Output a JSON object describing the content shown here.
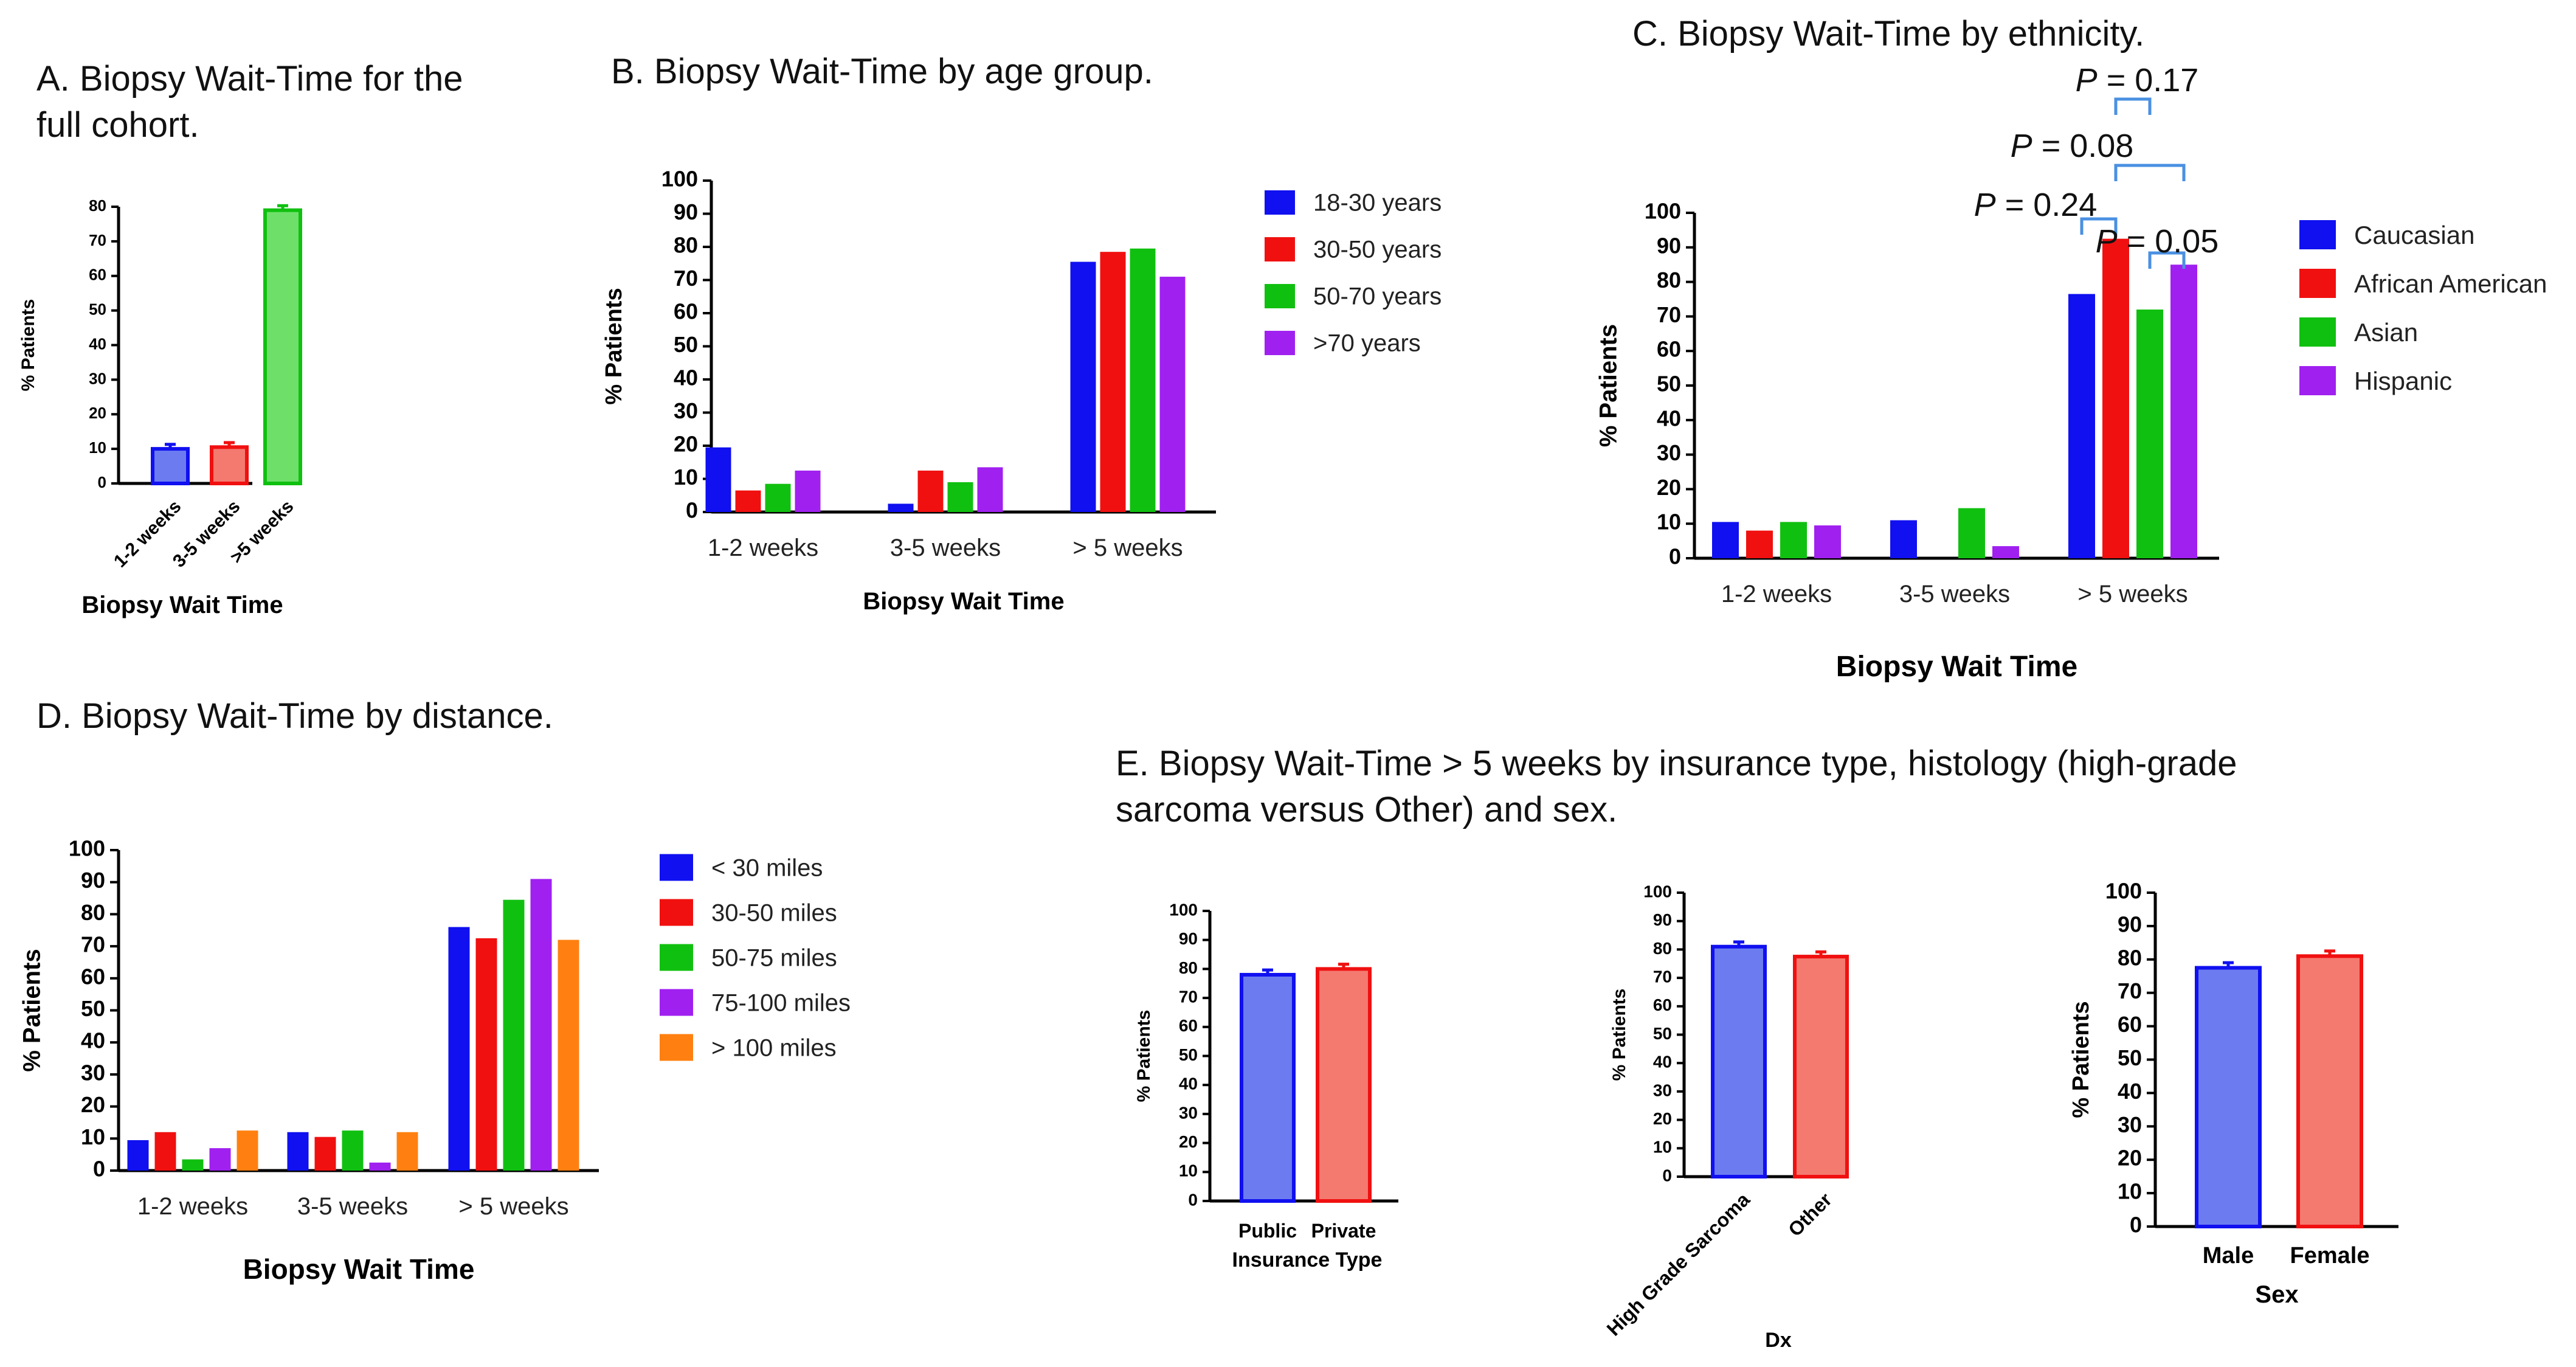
{
  "colors": {
    "blue": "#1010f0",
    "red": "#f01010",
    "green": "#10c010",
    "purple": "#a020f0",
    "orange": "#ff8010",
    "light_blue": "#6c7cf0",
    "light_red": "#f47a70",
    "light_green": "#6ee06a",
    "bracket": "#4a90e2",
    "axis": "#000000"
  },
  "titles": {
    "a_line1": "A. Biopsy Wait-Time for the",
    "a_line2": "full cohort.",
    "b": "B. Biopsy Wait-Time by age group.",
    "c": "C. Biopsy Wait-Time by ethnicity.",
    "d": "D. Biopsy Wait-Time by distance.",
    "e_line1": "E. Biopsy Wait-Time > 5 weeks by insurance type, histology (high-grade",
    "e_line2": "sarcoma versus Other) and sex."
  },
  "chart_data": [
    {
      "id": "A",
      "type": "bar",
      "title": "A. Biopsy Wait-Time for the full cohort.",
      "categories": [
        "1-2 weeks",
        "3-5 weeks",
        ">5 weeks"
      ],
      "values": [
        10,
        10.5,
        79
      ],
      "errors": [
        0.6,
        0.6,
        0.6
      ],
      "bar_colors": [
        "light_blue",
        "light_red",
        "light_green"
      ],
      "edge_colors": [
        "blue",
        "red",
        "green"
      ],
      "xlabel": "Biopsy Wait Time",
      "ylabel": "% Patients",
      "ylim": [
        0,
        80
      ],
      "yticks": [
        0,
        10,
        20,
        30,
        40,
        50,
        60,
        70,
        80
      ]
    },
    {
      "id": "B",
      "type": "bar",
      "title": "B. Biopsy Wait-Time by age group.",
      "categories": [
        "1-2 weeks",
        "3-5 weeks",
        "> 5 weeks"
      ],
      "series": [
        {
          "name": "18-30 years",
          "color": "blue",
          "values": [
            19.5,
            2.5,
            75.5
          ]
        },
        {
          "name": "30-50 years",
          "color": "red",
          "values": [
            6.5,
            12.5,
            78.5
          ]
        },
        {
          "name": "50-70 years",
          "color": "green",
          "values": [
            8.5,
            9,
            79.5
          ]
        },
        {
          "name": ">70 years",
          "color": "purple",
          "values": [
            12.5,
            13.5,
            71
          ]
        }
      ],
      "xlabel": "Biopsy Wait Time",
      "ylabel": "% Patients",
      "ylim": [
        0,
        100
      ],
      "yticks": [
        0,
        10,
        20,
        30,
        40,
        50,
        60,
        70,
        80,
        90,
        100
      ]
    },
    {
      "id": "C",
      "type": "bar",
      "title": "C. Biopsy Wait-Time by ethnicity.",
      "categories": [
        "1-2 weeks",
        "3-5 weeks",
        "> 5 weeks"
      ],
      "series": [
        {
          "name": "Caucasian",
          "color": "blue",
          "values": [
            10.5,
            11,
            76.5
          ]
        },
        {
          "name": "African American",
          "color": "red",
          "values": [
            8,
            0,
            92.5
          ]
        },
        {
          "name": "Asian",
          "color": "green",
          "values": [
            10.5,
            14.5,
            72
          ]
        },
        {
          "name": "Hispanic",
          "color": "purple",
          "values": [
            9.5,
            3.5,
            85
          ]
        }
      ],
      "annotations": [
        {
          "italic": "P",
          "text": " = 0.17",
          "from": "African American",
          "to": "Asian"
        },
        {
          "italic": "P",
          "text": " = 0.08",
          "from": "African American",
          "to": "Hispanic"
        },
        {
          "italic": "P",
          "text": " = 0.24",
          "from": "Caucasian",
          "to": "African American"
        },
        {
          "italic": "P",
          "text": " = 0.05",
          "from": "Asian",
          "to": "Hispanic"
        }
      ],
      "xlabel": "Biopsy Wait Time",
      "ylabel": "% Patients",
      "ylim": [
        0,
        100
      ],
      "yticks": [
        0,
        10,
        20,
        30,
        40,
        50,
        60,
        70,
        80,
        90,
        100
      ]
    },
    {
      "id": "D",
      "type": "bar",
      "title": "D. Biopsy Wait-Time by distance.",
      "categories": [
        "1-2 weeks",
        "3-5 weeks",
        "> 5 weeks"
      ],
      "series": [
        {
          "name": "< 30 miles",
          "color": "blue",
          "values": [
            9.5,
            12,
            76
          ]
        },
        {
          "name": "30-50 miles",
          "color": "red",
          "values": [
            12,
            10.5,
            72.5
          ]
        },
        {
          "name": "50-75 miles",
          "color": "green",
          "values": [
            3.5,
            12.5,
            84.5
          ]
        },
        {
          "name": "75-100 miles",
          "color": "purple",
          "values": [
            7,
            2.5,
            91
          ]
        },
        {
          "name": "> 100 miles",
          "color": "orange",
          "values": [
            12.5,
            12,
            72
          ]
        }
      ],
      "xlabel": "Biopsy Wait Time",
      "ylabel": "% Patients",
      "ylim": [
        0,
        100
      ],
      "yticks": [
        0,
        10,
        20,
        30,
        40,
        50,
        60,
        70,
        80,
        90,
        100
      ]
    },
    {
      "id": "E1",
      "type": "bar",
      "categories": [
        "Public",
        "Private"
      ],
      "values": [
        78,
        80
      ],
      "errors": [
        0.8,
        0.8
      ],
      "bar_colors": [
        "light_blue",
        "light_red"
      ],
      "edge_colors": [
        "blue",
        "red"
      ],
      "xlabel": "Insurance Type",
      "ylabel": "% Patients",
      "ylim": [
        0,
        100
      ],
      "yticks": [
        0,
        10,
        20,
        30,
        40,
        50,
        60,
        70,
        80,
        90,
        100
      ]
    },
    {
      "id": "E2",
      "type": "bar",
      "categories": [
        "High Grade Sarcoma",
        "Other"
      ],
      "values": [
        81,
        77.5
      ],
      "errors": [
        0.8,
        0.8
      ],
      "bar_colors": [
        "light_blue",
        "light_red"
      ],
      "edge_colors": [
        "blue",
        "red"
      ],
      "xlabel": "Dx",
      "ylabel": "% Patients",
      "ylim": [
        0,
        100
      ],
      "yticks": [
        0,
        10,
        20,
        30,
        40,
        50,
        60,
        70,
        80,
        90,
        100
      ]
    },
    {
      "id": "E3",
      "type": "bar",
      "categories": [
        "Male",
        "Female"
      ],
      "values": [
        77.5,
        81
      ],
      "errors": [
        0.8,
        0.8
      ],
      "bar_colors": [
        "light_blue",
        "light_red"
      ],
      "edge_colors": [
        "blue",
        "red"
      ],
      "xlabel": "Sex",
      "ylabel": "% Patients",
      "ylim": [
        0,
        100
      ],
      "yticks": [
        0,
        10,
        20,
        30,
        40,
        50,
        60,
        70,
        80,
        90,
        100
      ]
    }
  ]
}
